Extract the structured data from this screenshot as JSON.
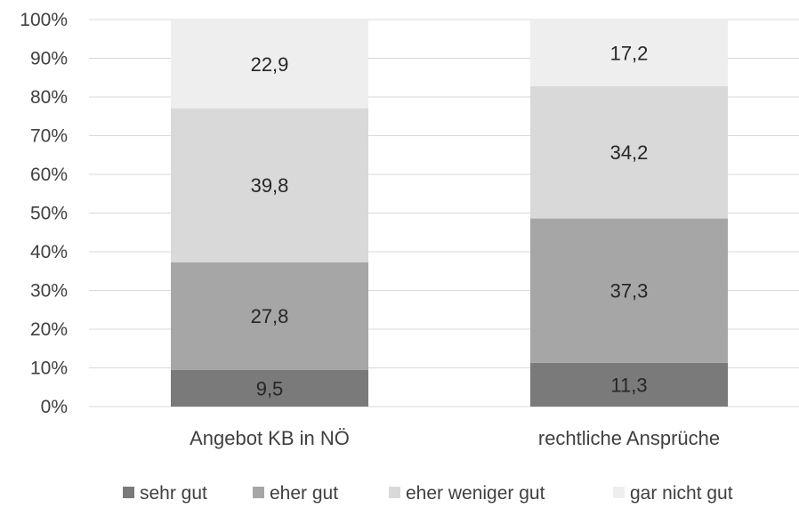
{
  "chart_data": {
    "type": "bar",
    "stacked": true,
    "percent_stacked": true,
    "categories": [
      "Angebot KB in NÖ",
      "rechtliche Ansprüche"
    ],
    "series": [
      {
        "name": "sehr gut",
        "values": [
          9.5,
          11.3
        ],
        "labels": [
          "9,5",
          "11,3"
        ],
        "color": "#7a7a7a"
      },
      {
        "name": "eher gut",
        "values": [
          27.8,
          37.3
        ],
        "labels": [
          "27,8",
          "37,3"
        ],
        "color": "#a6a6a6"
      },
      {
        "name": "eher weniger gut",
        "values": [
          39.8,
          34.2
        ],
        "labels": [
          "39,8",
          "34,2"
        ],
        "color": "#d9d9d9"
      },
      {
        "name": "gar nicht gut",
        "values": [
          22.9,
          17.2
        ],
        "labels": [
          "22,9",
          "17,2"
        ],
        "color": "#eeeeee"
      }
    ],
    "y_ticks": [
      "0%",
      "10%",
      "20%",
      "30%",
      "40%",
      "50%",
      "60%",
      "70%",
      "80%",
      "90%",
      "100%"
    ],
    "ylim": [
      0,
      100
    ],
    "grid": true,
    "legend_position": "bottom"
  }
}
